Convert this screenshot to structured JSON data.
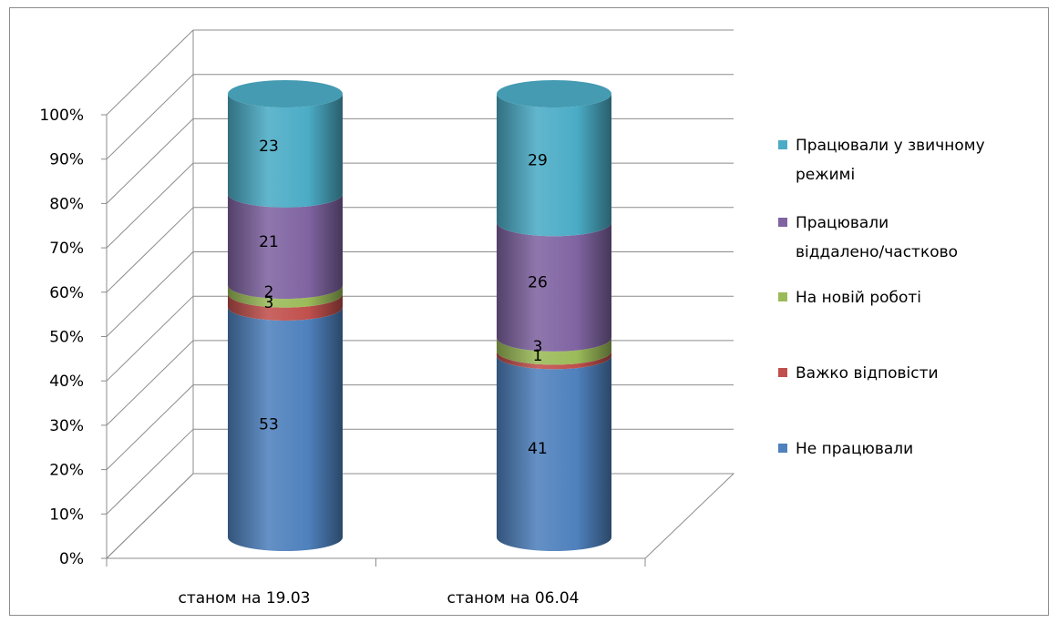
{
  "chart_data": {
    "type": "bar",
    "stacked": true,
    "percent_stacked": true,
    "three_d": "cylinder",
    "categories": [
      "станом на 19.03",
      "станом на 06.04"
    ],
    "series": [
      {
        "name": "Не працювали",
        "values": [
          53,
          41
        ],
        "color": "#4f81bd"
      },
      {
        "name": "Важко відповісти",
        "values": [
          3,
          1
        ],
        "color": "#c0504d"
      },
      {
        "name": "На новій роботі",
        "values": [
          2,
          3
        ],
        "color": "#9bbb59"
      },
      {
        "name": "Працювали віддалено/частково",
        "values": [
          21,
          26
        ],
        "color": "#8064a2"
      },
      {
        "name": "Працювали у звичному режимі",
        "values": [
          23,
          29
        ],
        "color": "#4bacc6"
      }
    ],
    "y_ticks": [
      "0%",
      "10%",
      "20%",
      "30%",
      "40%",
      "50%",
      "60%",
      "70%",
      "80%",
      "90%",
      "100%"
    ],
    "ylim": [
      0,
      100
    ],
    "grid": true,
    "legend": "right"
  }
}
